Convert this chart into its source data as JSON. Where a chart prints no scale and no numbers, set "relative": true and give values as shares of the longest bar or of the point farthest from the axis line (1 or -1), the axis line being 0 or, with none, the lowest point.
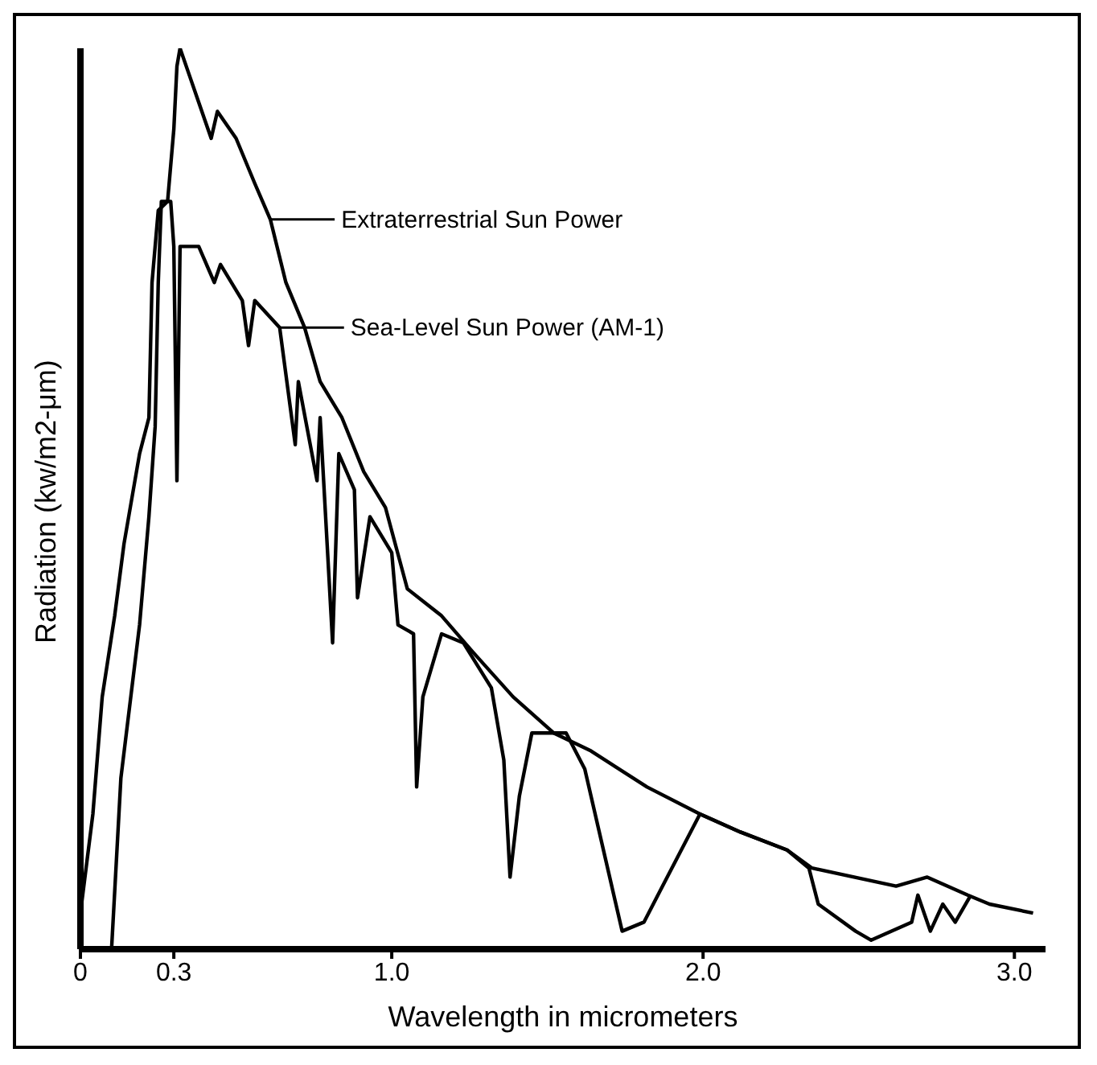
{
  "chart_data": {
    "type": "line",
    "relative": true,
    "xlabel": "Wavelength in micrometers",
    "ylabel": "Radiation (kw/m2-μm)",
    "xlim": [
      0,
      3.1
    ],
    "xticks": [
      0,
      0.3,
      {
        "value": 1,
        "label": "1.0"
      },
      {
        "value": 2,
        "label": "2.0"
      },
      {
        "value": 3,
        "label": "3.0"
      }
    ],
    "grid": false,
    "legend": "top left",
    "marker": "none",
    "line_style": "solid",
    "series": [
      {
        "name": "Extraterrestrial Sun Power",
        "color": "#000000",
        "x": [
          0.0,
          0.04,
          0.07,
          0.11,
          0.14,
          0.19,
          0.22,
          0.23,
          0.25,
          0.28,
          0.3,
          0.31,
          0.32,
          0.35,
          0.38,
          0.42,
          0.44,
          0.5,
          0.56,
          0.61,
          0.66,
          0.72,
          0.77,
          0.84,
          0.91,
          0.98,
          1.05,
          1.16,
          1.26,
          1.39,
          1.52,
          1.64,
          1.82,
          1.99,
          2.12,
          2.27,
          2.35,
          2.62,
          2.72,
          2.85,
          2.92,
          3.06
        ],
        "values": [
          0.04,
          0.15,
          0.28,
          0.37,
          0.45,
          0.55,
          0.59,
          0.74,
          0.82,
          0.83,
          0.91,
          0.98,
          1.0,
          0.97,
          0.94,
          0.9,
          0.93,
          0.9,
          0.85,
          0.81,
          0.74,
          0.69,
          0.63,
          0.59,
          0.53,
          0.49,
          0.4,
          0.37,
          0.33,
          0.28,
          0.24,
          0.22,
          0.18,
          0.15,
          0.13,
          0.11,
          0.09,
          0.07,
          0.08,
          0.06,
          0.05,
          0.04
        ]
      },
      {
        "name": "Sea-Level Sun Power (AM-1)",
        "color": "#000000",
        "x": [
          0.1,
          0.13,
          0.19,
          0.22,
          0.24,
          0.25,
          0.26,
          0.29,
          0.3,
          0.31,
          0.32,
          0.38,
          0.43,
          0.45,
          0.52,
          0.54,
          0.56,
          0.64,
          0.69,
          0.7,
          0.76,
          0.77,
          0.81,
          0.83,
          0.88,
          0.89,
          0.93,
          1.0,
          1.02,
          1.07,
          1.08,
          1.1,
          1.16,
          1.23,
          1.32,
          1.36,
          1.38,
          1.41,
          1.45,
          1.56,
          1.62,
          1.66,
          1.74,
          1.81,
          1.87,
          1.99,
          2.12,
          2.27,
          2.34,
          2.37,
          2.49,
          2.54,
          2.67,
          2.69,
          2.73,
          2.77,
          2.81,
          2.86
        ],
        "values": [
          0.0,
          0.19,
          0.36,
          0.48,
          0.58,
          0.74,
          0.83,
          0.83,
          0.78,
          0.52,
          0.78,
          0.78,
          0.74,
          0.76,
          0.72,
          0.67,
          0.72,
          0.69,
          0.56,
          0.63,
          0.52,
          0.59,
          0.34,
          0.55,
          0.51,
          0.39,
          0.48,
          0.44,
          0.36,
          0.35,
          0.18,
          0.28,
          0.35,
          0.34,
          0.29,
          0.21,
          0.08,
          0.17,
          0.24,
          0.24,
          0.2,
          0.14,
          0.02,
          0.03,
          0.07,
          0.15,
          0.13,
          0.11,
          0.09,
          0.05,
          0.02,
          0.01,
          0.03,
          0.06,
          0.02,
          0.05,
          0.03,
          0.06
        ]
      }
    ]
  }
}
